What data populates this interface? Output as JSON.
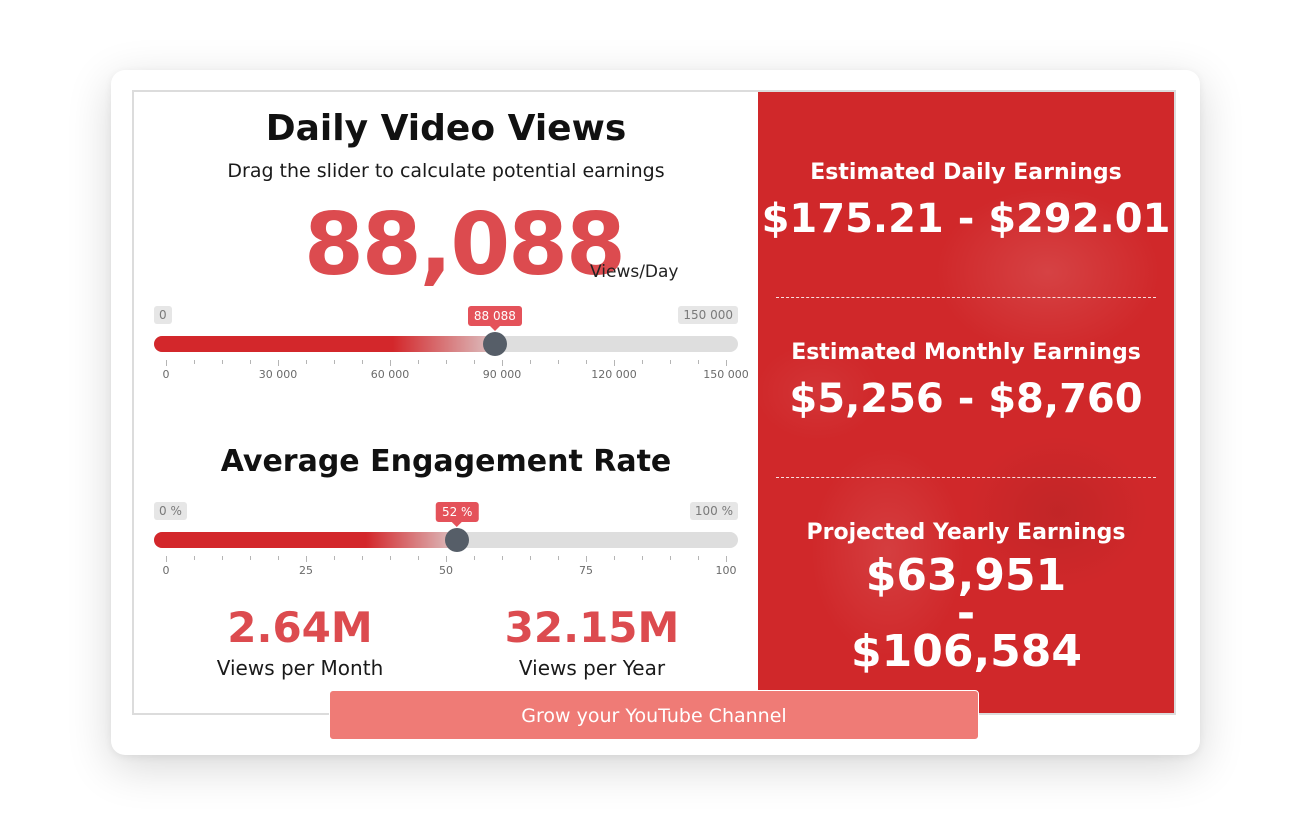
{
  "views": {
    "title": "Daily Video Views",
    "subtitle": "Drag the slider to calculate potential earnings",
    "value": "88,088",
    "unit": "Views/Day",
    "slider": {
      "min_label": "0",
      "max_label": "150 000",
      "current_label": "88 088",
      "min": 0,
      "max": 150000,
      "current": 88088,
      "tick_labels": [
        "0",
        "30 000",
        "60 000",
        "90 000",
        "120 000",
        "150 000"
      ]
    }
  },
  "engagement": {
    "title": "Average Engagement Rate",
    "slider": {
      "min_label": "0 %",
      "max_label": "100 %",
      "current_label": "52 %",
      "min": 0,
      "max": 100,
      "current": 52,
      "tick_labels": [
        "0",
        "25",
        "50",
        "75",
        "100"
      ]
    }
  },
  "stats": {
    "monthly_value": "2.64M",
    "monthly_label": "Views per Month",
    "yearly_value": "32.15M",
    "yearly_label": "Views per Year"
  },
  "earnings": {
    "daily_label": "Estimated Daily Earnings",
    "daily_value": "$175.21 - $292.01",
    "monthly_label": "Estimated Monthly Earnings",
    "monthly_value": "$5,256 - $8,760",
    "yearly_label": "Projected Yearly Earnings",
    "yearly_value": "$63,951 - $106,584"
  },
  "cta": {
    "label": "Grow your YouTube Channel"
  },
  "colors": {
    "accent": "#dc4b4f",
    "panel": "#d0282a",
    "handle": "#565e68",
    "button": "#ef7b76",
    "slider_fill_start": "#d3272b"
  }
}
